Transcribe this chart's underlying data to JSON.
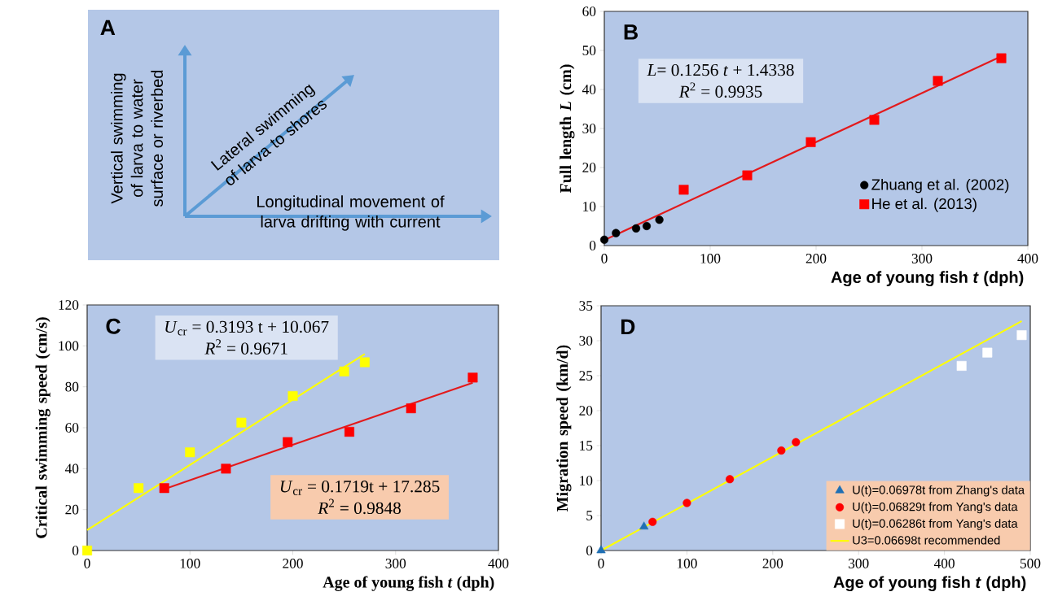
{
  "chart_data": [
    {
      "type": "other",
      "title": "A",
      "annotations": [
        "Vertical swimming of larva to water surface or riverbed",
        "Lateral swimming of larva to shores",
        "Longitudinal movement of larva drifting with current"
      ]
    },
    {
      "type": "scatter",
      "title": "B",
      "xlabel": "Age of young fish *t* (dph)",
      "ylabel": "Full length *L* (cm)",
      "xlim": [
        0,
        400
      ],
      "xticks": [
        0,
        100,
        200,
        300,
        400
      ],
      "ylim": [
        0,
        60
      ],
      "yticks": [
        0,
        10,
        20,
        30,
        40,
        50,
        60
      ],
      "legend": "bottom right",
      "annotations": [
        "*L*= 0.1256 *t* + 1.4338",
        "*R*$^{2}$ = 0.9935"
      ],
      "series": [
        {
          "name": "Zhuang et al. (2002)",
          "color": "#000000",
          "marker": "circle",
          "x": [
            0,
            11,
            30,
            40,
            52
          ],
          "values": [
            1.5,
            3.2,
            4.4,
            5.0,
            6.6
          ]
        },
        {
          "name": "He et al. (2013)",
          "color": "#ff0000",
          "marker": "square",
          "x": [
            75,
            135,
            195,
            255,
            315,
            375
          ],
          "values": [
            14.3,
            18.0,
            26.5,
            32.2,
            42.2,
            48.0
          ]
        },
        {
          "type": "line",
          "color": "#e31a1c",
          "line_style": "solid",
          "x": [
            0,
            375
          ],
          "values": [
            1.4,
            48.5
          ]
        }
      ]
    },
    {
      "type": "scatter",
      "title": "C",
      "xlabel": "Age of young fish *t* (dph)",
      "ylabel": "Critical swimming speed (cm/s)",
      "xlim": [
        0,
        400
      ],
      "xticks": [
        0,
        100,
        200,
        300,
        400
      ],
      "ylim": [
        0,
        120
      ],
      "yticks": [
        0,
        20,
        40,
        60,
        80,
        100,
        120
      ],
      "annotations": [
        "*U*$_{cr}$ = 0.3193 t + 10.067",
        "*R*$^{2}$ = 0.9671",
        "*U*$_{cr}$ = 0.1719t + 17.285",
        "*R*$^{2}$ = 0.9848"
      ],
      "series": [
        {
          "color": "#ffff00",
          "marker": "square",
          "x": [
            0,
            50,
            100,
            150,
            200,
            250,
            270
          ],
          "values": [
            0,
            30.5,
            48,
            62.5,
            75.5,
            87.5,
            92
          ]
        },
        {
          "color": "#ff0000",
          "marker": "square",
          "x": [
            75,
            135,
            195,
            255,
            315,
            375
          ],
          "values": [
            30.5,
            40,
            53,
            58,
            69.5,
            84.5
          ]
        },
        {
          "type": "line",
          "color": "#ffff00",
          "line_style": "solid",
          "x": [
            0,
            270
          ],
          "values": [
            10,
            96
          ]
        },
        {
          "type": "line",
          "color": "#e31a1c",
          "line_style": "solid",
          "x": [
            75,
            375
          ],
          "values": [
            30,
            82
          ]
        }
      ]
    },
    {
      "type": "scatter",
      "title": "D",
      "xlabel": "Age of young fish *t* (dph)",
      "ylabel": "Migration speed (km/d)",
      "xlim": [
        0,
        500
      ],
      "xticks": [
        0,
        100,
        200,
        300,
        400,
        500
      ],
      "ylim": [
        0,
        35
      ],
      "yticks": [
        0,
        5,
        10,
        15,
        20,
        25,
        30,
        35
      ],
      "legend": "bottom right",
      "series": [
        {
          "name": "U(t)=0.06978t from Zhang's data",
          "color": "#1f6fb4",
          "marker": "triangle",
          "x": [
            0,
            50
          ],
          "values": [
            0,
            3.4
          ]
        },
        {
          "name": "U(t)=0.06829t from Yang's data",
          "color": "#ff0000",
          "marker": "circle",
          "x": [
            60,
            100,
            150,
            210,
            227
          ],
          "values": [
            4.1,
            6.8,
            10.2,
            14.3,
            15.5
          ]
        },
        {
          "name": "U(t)=0.06286t from Yang's data",
          "color": "#ffffff",
          "marker": "square",
          "x": [
            420,
            450,
            490
          ],
          "values": [
            26.4,
            28.3,
            30.8
          ]
        },
        {
          "name": "U3=0.06698t recommended",
          "type": "line",
          "color": "#ffff00",
          "line_style": "solid",
          "x": [
            0,
            490
          ],
          "values": [
            0,
            32.8
          ]
        }
      ]
    }
  ]
}
